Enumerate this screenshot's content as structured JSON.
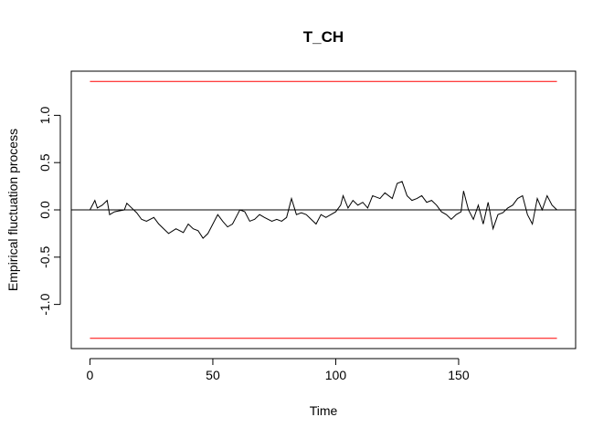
{
  "chart_data": {
    "type": "line",
    "title": "T_CH",
    "x_label": "Time",
    "y_label": "Empirical fluctuation process",
    "x": [
      0,
      2,
      3,
      5,
      7,
      8,
      10,
      14,
      15,
      17,
      19,
      21,
      23,
      26,
      28,
      30,
      32,
      35,
      38,
      40,
      42,
      44,
      46,
      48,
      50,
      52,
      54,
      56,
      58,
      60,
      61,
      63,
      65,
      67,
      69,
      71,
      74,
      76,
      78,
      80,
      82,
      84,
      86,
      88,
      90,
      92,
      94,
      96,
      98,
      100,
      102,
      103,
      105,
      107,
      109,
      111,
      113,
      115,
      118,
      120,
      123,
      125,
      127,
      129,
      131,
      133,
      135,
      137,
      139,
      141,
      143,
      145,
      147,
      149,
      151,
      152,
      154,
      156,
      158,
      160,
      162,
      164,
      166,
      168,
      170,
      172,
      174,
      176,
      178,
      180,
      182,
      184,
      186,
      188,
      190
    ],
    "series": [
      {
        "name": "T_CH",
        "color": "#000000",
        "values": [
          0,
          0.1,
          0.02,
          0.05,
          0.1,
          -0.05,
          -0.02,
          0.0,
          0.07,
          0.02,
          -0.03,
          -0.1,
          -0.12,
          -0.08,
          -0.15,
          -0.2,
          -0.25,
          -0.2,
          -0.24,
          -0.15,
          -0.2,
          -0.22,
          -0.3,
          -0.25,
          -0.15,
          -0.05,
          -0.12,
          -0.18,
          -0.15,
          -0.05,
          0.0,
          -0.02,
          -0.12,
          -0.1,
          -0.05,
          -0.08,
          -0.12,
          -0.1,
          -0.12,
          -0.08,
          0.12,
          -0.05,
          -0.03,
          -0.05,
          -0.1,
          -0.15,
          -0.05,
          -0.08,
          -0.05,
          -0.02,
          0.05,
          0.15,
          0.02,
          0.1,
          0.05,
          0.08,
          0.02,
          0.15,
          0.12,
          0.18,
          0.12,
          0.28,
          0.3,
          0.15,
          0.1,
          0.12,
          0.15,
          0.08,
          0.1,
          0.05,
          -0.02,
          -0.05,
          -0.1,
          -0.05,
          -0.02,
          0.2,
          0.0,
          -0.1,
          0.05,
          -0.15,
          0.08,
          -0.2,
          -0.05,
          -0.03,
          0.02,
          0.05,
          0.12,
          0.15,
          -0.05,
          -0.15,
          0.12,
          0.0,
          0.15,
          0.05,
          0.0
        ]
      }
    ],
    "boundaries": [
      1.358,
      -1.358
    ],
    "boundary_color": "#ff0000",
    "reference_line": 0,
    "xlim": [
      -7.6,
      197.6
    ],
    "ylim": [
      -1.467,
      1.467
    ],
    "xticks": [
      0,
      50,
      100,
      150
    ],
    "yticks": [
      {
        "value": -1.0,
        "label": "-1.0"
      },
      -0.5,
      {
        "value": 0.0,
        "label": "0.0"
      },
      0.5,
      {
        "value": 1.0,
        "label": "1.0"
      }
    ]
  }
}
